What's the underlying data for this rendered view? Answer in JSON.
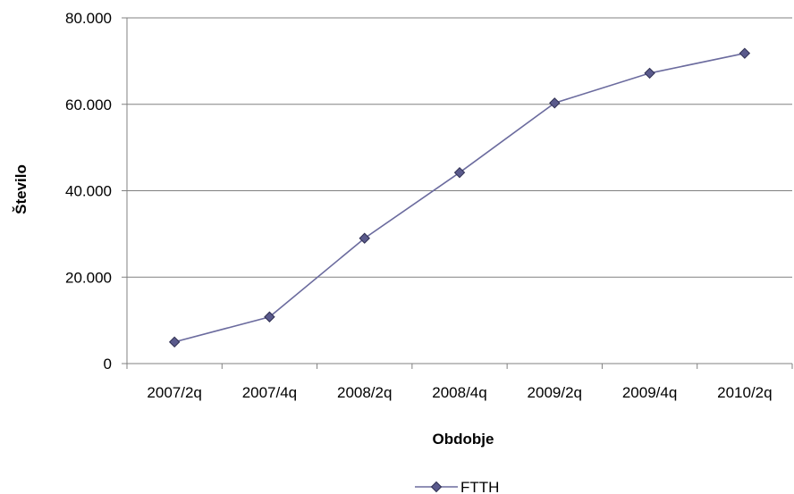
{
  "chart_data": {
    "type": "line",
    "title": "",
    "xlabel": "Obdobje",
    "ylabel": "Število",
    "categories": [
      "2007/2q",
      "2007/4q",
      "2008/2q",
      "2008/4q",
      "2009/2q",
      "2009/4q",
      "2010/2q"
    ],
    "series": [
      {
        "name": "FTTH",
        "values": [
          5000,
          10800,
          29000,
          44200,
          60300,
          67200,
          71800
        ]
      }
    ],
    "ylim": [
      0,
      80000
    ],
    "yticks": [
      0,
      20000,
      40000,
      60000,
      80000
    ],
    "ytick_labels": [
      "0",
      "20.000",
      "40.000",
      "60.000",
      "80.000"
    ],
    "grid": "horizontal",
    "legend_position": "bottom",
    "colors": {
      "line": "#6b6b9e",
      "marker_fill": "#5a5a8c",
      "marker_stroke": "#2e2e50",
      "grid": "#808080",
      "axis": "#808080"
    }
  }
}
